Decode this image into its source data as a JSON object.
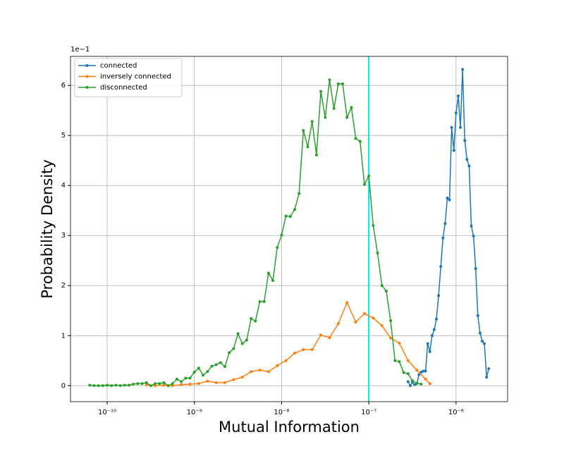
{
  "chart_data": {
    "type": "line",
    "x_label": "Mutual Information",
    "y_label": "Probability Density",
    "y_offset_label": "1e−1",
    "xscale": "log",
    "xlim": [
      3.8e-11,
      3.9e-06
    ],
    "ylim": [
      -0.32,
      6.58
    ],
    "xticks": [
      {
        "value": 1e-10,
        "label": "10⁻¹⁰"
      },
      {
        "value": 1e-09,
        "label": "10⁻⁹"
      },
      {
        "value": 1e-08,
        "label": "10⁻⁸"
      },
      {
        "value": 1e-07,
        "label": "10⁻⁷"
      },
      {
        "value": 1e-06,
        "label": "10⁻⁶"
      }
    ],
    "yticks": [
      0,
      1,
      2,
      3,
      4,
      5,
      6
    ],
    "grid": true,
    "legend": "upper left",
    "vline": {
      "x": 1e-07,
      "color": "#00e5ee"
    },
    "series": [
      {
        "name": "connected",
        "color": "#1f77b4",
        "x": [
          2.818e-07,
          2.985e-07,
          3.162e-07,
          3.35e-07,
          3.548e-07,
          3.758e-07,
          3.981e-07,
          4.217e-07,
          4.467e-07,
          4.732e-07,
          5.012e-07,
          5.309e-07,
          5.623e-07,
          5.957e-07,
          6.31e-07,
          6.683e-07,
          7.079e-07,
          7.499e-07,
          7.943e-07,
          8.414e-07,
          8.913e-07,
          9.441e-07,
          1e-06,
          1.059e-06,
          1.122e-06,
          1.189e-06,
          1.259e-06,
          1.334e-06,
          1.413e-06,
          1.496e-06,
          1.585e-06,
          1.679e-06,
          1.778e-06,
          1.884e-06,
          1.995e-06,
          2.113e-06,
          2.239e-06,
          2.371e-06
        ],
        "values": [
          0.08,
          0,
          0.07,
          0.02,
          0.04,
          0.22,
          0.27,
          0.29,
          0.29,
          0.84,
          0.68,
          1.0,
          1.12,
          1.33,
          1.8,
          2.38,
          2.95,
          3.24,
          3.75,
          3.71,
          5.16,
          4.7,
          5.45,
          5.79,
          5.16,
          6.32,
          4.9,
          4.52,
          4.39,
          3.19,
          2.99,
          2.34,
          1.4,
          1.05,
          0.89,
          0.84,
          0.17,
          0.34
        ]
      },
      {
        "name": "inversely connected",
        "color": "#ff7f0e",
        "x": [
          2.818e-10,
          3.548e-10,
          4.467e-10,
          5.623e-10,
          7.079e-10,
          8.913e-10,
          1.122e-09,
          1.413e-09,
          1.778e-09,
          2.239e-09,
          2.818e-09,
          3.548e-09,
          4.467e-09,
          5.623e-09,
          7.079e-09,
          8.913e-09,
          1.122e-08,
          1.413e-08,
          1.778e-08,
          2.239e-08,
          2.818e-08,
          3.548e-08,
          4.467e-08,
          5.623e-08,
          7.079e-08,
          8.913e-08,
          1.122e-07,
          1.413e-07,
          1.778e-07,
          2.239e-07,
          2.818e-07,
          3.548e-07,
          4.467e-07,
          5.012e-07
        ],
        "values": [
          0.02,
          0,
          0.01,
          0,
          0.02,
          0.03,
          0.04,
          0.09,
          0.06,
          0.06,
          0.12,
          0.17,
          0.28,
          0.31,
          0.28,
          0.4,
          0.5,
          0.65,
          0.72,
          0.72,
          1.01,
          0.96,
          1.24,
          1.66,
          1.27,
          1.44,
          1.35,
          1.2,
          0.95,
          0.85,
          0.5,
          0.31,
          0.13,
          0.04
        ]
      },
      {
        "name": "disconnected",
        "color": "#2ca02c",
        "x": [
          6.31e-11,
          7.079e-11,
          7.943e-11,
          8.913e-11,
          1e-10,
          1.122e-10,
          1.259e-10,
          1.413e-10,
          1.585e-10,
          1.778e-10,
          1.995e-10,
          2.239e-10,
          2.512e-10,
          2.818e-10,
          3.162e-10,
          3.548e-10,
          3.981e-10,
          4.467e-10,
          5.012e-10,
          5.623e-10,
          6.31e-10,
          7.079e-10,
          7.943e-10,
          8.913e-10,
          1e-09,
          1.122e-09,
          1.259e-09,
          1.413e-09,
          1.585e-09,
          1.778e-09,
          1.995e-09,
          2.239e-09,
          2.512e-09,
          2.818e-09,
          3.162e-09,
          3.548e-09,
          3.981e-09,
          4.467e-09,
          5.012e-09,
          5.623e-09,
          6.31e-09,
          7.079e-09,
          7.943e-09,
          8.913e-09,
          1e-08,
          1.122e-08,
          1.259e-08,
          1.413e-08,
          1.585e-08,
          1.778e-08,
          1.995e-08,
          2.239e-08,
          2.512e-08,
          2.818e-08,
          3.162e-08,
          3.548e-08,
          3.981e-08,
          4.467e-08,
          5.012e-08,
          5.623e-08,
          6.31e-08,
          7.079e-08,
          7.943e-08,
          8.913e-08,
          1e-07,
          1.122e-07,
          1.259e-07,
          1.413e-07,
          1.585e-07,
          1.778e-07,
          1.995e-07,
          2.239e-07,
          2.512e-07,
          2.818e-07,
          3.162e-07,
          3.548e-07,
          3.981e-07
        ],
        "values": [
          0.01,
          0,
          0,
          0,
          0.01,
          0,
          0.01,
          0,
          0.01,
          0.01,
          0.03,
          0.04,
          0.04,
          0.06,
          0,
          0.04,
          0.04,
          0.06,
          0,
          0.04,
          0.13,
          0.08,
          0.15,
          0.15,
          0.27,
          0.35,
          0.21,
          0.28,
          0.39,
          0.42,
          0.46,
          0.38,
          0.66,
          0.74,
          1.04,
          0.84,
          0.91,
          1.34,
          1.29,
          1.68,
          1.68,
          2.25,
          2.1,
          2.76,
          3.01,
          3.39,
          3.38,
          3.52,
          3.84,
          5.1,
          4.77,
          5.28,
          4.61,
          5.88,
          5.36,
          6.11,
          5.54,
          6.03,
          6.03,
          5.36,
          5.56,
          4.94,
          4.88,
          4.02,
          4.19,
          3.2,
          2.65,
          2.0,
          1.89,
          1.3,
          0.5,
          0.48,
          0.26,
          0.24,
          0.1,
          0.05,
          0.03
        ]
      }
    ]
  }
}
